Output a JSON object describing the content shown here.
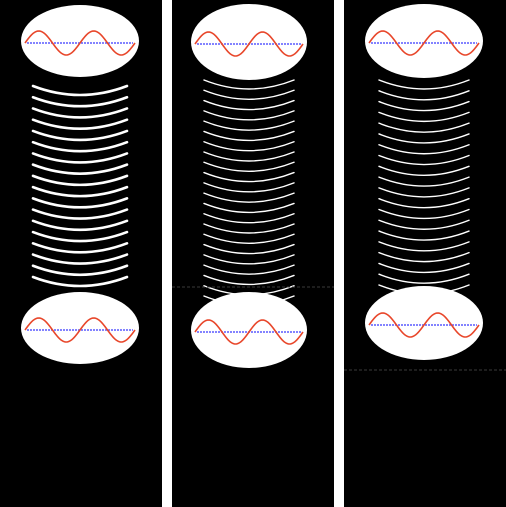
{
  "colors": {
    "background": "#ffffff",
    "panel": "#000000",
    "ellipse_fill": "#ffffff",
    "wave": "#e8462a",
    "axis": "#5a5aff",
    "line": "#ffffff",
    "divider": "#3a3a3a"
  },
  "icons": {
    "top": "ellipse-with-sine-wave-icon",
    "bottom": "ellipse-with-sine-wave-icon"
  },
  "panels": [
    {
      "id": "left",
      "line_count": 18,
      "line_style": "thick",
      "has_divider": false
    },
    {
      "id": "middle",
      "line_count": 22,
      "line_style": "thin",
      "has_divider": true
    },
    {
      "id": "right",
      "line_count": 20,
      "line_style": "thin",
      "has_divider": true
    }
  ]
}
